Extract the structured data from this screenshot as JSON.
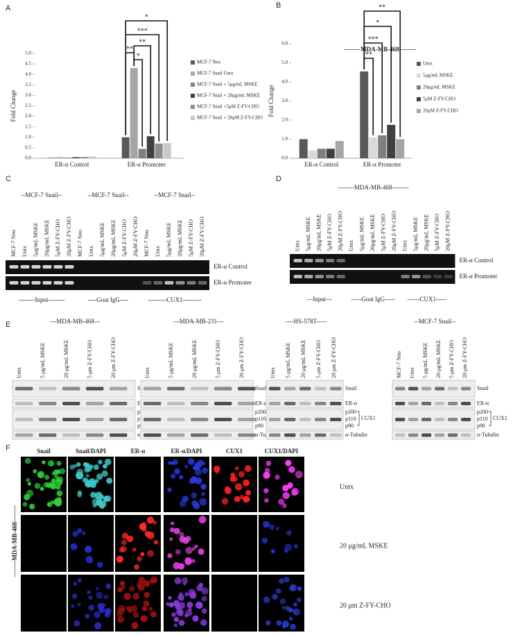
{
  "panel_labels": [
    "A",
    "B",
    "C",
    "D",
    "E",
    "F"
  ],
  "chart_data": [
    {
      "type": "bar",
      "ylabel": "Fold Change",
      "categories": [
        "ER-α Control",
        "ER-α Promoter"
      ],
      "ylim": [
        0,
        5
      ],
      "yticks": [
        {
          "value": 0,
          "label": "0.0"
        },
        0.5,
        {
          "value": 1,
          "label": "1.0"
        },
        1.5,
        {
          "value": 2,
          "label": "2.0"
        },
        2.5,
        {
          "value": 3,
          "label": "3.0"
        },
        3.5,
        {
          "value": 4,
          "label": "4.0"
        },
        4.5,
        {
          "value": 5,
          "label": "5.0"
        }
      ],
      "series": [
        {
          "name": "MCF-7 Neo",
          "color": "#595959",
          "values": [
            0.02,
            1.0
          ]
        },
        {
          "name": "MCF-7 Snail Untx",
          "color": "#a6a6a6",
          "values": [
            0.05,
            4.3
          ]
        },
        {
          "name": "MCF-7 Snail + 5μg/mL MSKE",
          "color": "#7f7f7f",
          "values": [
            0.03,
            0.45
          ]
        },
        {
          "name": "MCF-7 Snail + 20μg/mL MSKE",
          "color": "#404040",
          "values": [
            0.05,
            1.05
          ]
        },
        {
          "name": "MCF-7 Snail +5μM Z-FY-CHO",
          "color": "#8c8c8c",
          "values": [
            0.06,
            0.7
          ]
        },
        {
          "name": "MCF-7 Snail + 20μM Z-FY-CHO",
          "color": "#c8c8c8",
          "values": [
            0.08,
            0.72
          ]
        }
      ],
      "annotations": [
        "*",
        "***",
        "**",
        "**",
        "*"
      ]
    },
    {
      "type": "bar",
      "title": "--------MDA-MB-468--------",
      "ylabel": "Fold Change",
      "categories": [
        "ER-α Control",
        "ER-α Promoter"
      ],
      "ylim": [
        0,
        6
      ],
      "yticks": [
        {
          "value": 0,
          "label": "0.0"
        },
        {
          "value": 1,
          "label": "1.0"
        },
        {
          "value": 2,
          "label": "2.0"
        },
        {
          "value": 3,
          "label": "3.0"
        },
        {
          "value": 4,
          "label": "4.0"
        },
        {
          "value": 5,
          "label": "5.0"
        },
        {
          "value": 6,
          "label": "6.0"
        }
      ],
      "series": [
        {
          "name": "Untx",
          "color": "#595959",
          "values": [
            1.0,
            4.55
          ]
        },
        {
          "name": "5μg/mL MSKE",
          "color": "#d9d9d9",
          "values": [
            0.4,
            1.1
          ]
        },
        {
          "name": "20μg/mL MSKE",
          "color": "#7f7f7f",
          "values": [
            0.5,
            1.2
          ]
        },
        {
          "name": "5μM Z-FY-CHO",
          "color": "#404040",
          "values": [
            0.5,
            1.75
          ]
        },
        {
          "name": "20μM Z-FY-CHO",
          "color": "#a6a6a6",
          "values": [
            0.9,
            1.0
          ]
        }
      ],
      "annotations": [
        "**",
        "*",
        "***",
        "**"
      ]
    }
  ],
  "gel_c": {
    "rows": [
      "ER-α Control",
      "ER-α Promoter"
    ],
    "groups": [
      {
        "title": "--MCF-7 Snail--",
        "footer": "--------Input--------",
        "lanes": [
          "MCF-7 Neo",
          "Untx",
          "5μg/mL MSKE",
          "20μg/mL MSKE",
          "5μM Z-FY-CHO",
          "20μM Z-FY-CHO"
        ]
      },
      {
        "title": "--MCF-7 Snail--",
        "footer": "----Goat IgG----",
        "lanes": [
          "MCF-7 Neo",
          "Untx",
          "5μg/mL MSKE",
          "20μg/mL MSKE",
          "5μM Z-FY-CHO",
          "20μM Z-FY-CHO"
        ]
      },
      {
        "title": "--MCF-7 Snail--",
        "footer": "---------CUX1---------",
        "lanes": [
          "MCF-7 Neo",
          "Untx",
          "5μg/mL MSKE",
          "20μg/mL MSKE",
          "5μM Z-FY-CHO",
          "20μM Z-FY-CHO"
        ]
      }
    ]
  },
  "gel_d": {
    "title": "--------MDA-MB-468--------",
    "rows": [
      "ER-α Control",
      "ER-α Promoter"
    ],
    "groups": [
      {
        "footer": "---Input---",
        "lanes": [
          "Untx",
          "5μg/mL MSKE",
          "20μg/mL MSKE",
          "5μM Z-FY-CHO",
          "20μM Z-FY-CHO"
        ]
      },
      {
        "footer": "-----Goat IgG-----",
        "lanes": [
          "Untx",
          "5μg/mL MSKE",
          "20μg/mL MSKE",
          "5μM Z-FY-CHO",
          "20μM Z-FY-CHO"
        ]
      },
      {
        "footer": "------CUX1-----",
        "lanes": [
          "Untx",
          "5μg/mL MSKE",
          "20μg/mL MSKE",
          "5μM Z-FY-CHO",
          "20μM Z-FY-CHO"
        ]
      }
    ]
  },
  "western_e": {
    "labels": {
      "snail": "Snail",
      "er": "ER-α",
      "p200": "p200",
      "p110": "p110",
      "p90": "p90",
      "cux1": "CUX1",
      "tubulin": "α-Tubulin"
    },
    "blots": [
      {
        "title": "---MDA-MB-468---",
        "lanes": [
          "Untx",
          "5 μg/mL MSKE",
          "20 μg/mL MSKE",
          "5 μm Z-FY-CHO",
          "20 μm Z-FY-CHO"
        ]
      },
      {
        "title": "---MDA-MB-231---",
        "lanes": [
          "Untx",
          "5 μg/mL MSKE",
          "20 μg/mL MSKE",
          "5 μm Z-FY-CHO",
          "20 μm Z-FY-CHO"
        ]
      },
      {
        "title": "----HS-578T-----",
        "lanes": [
          "Untx",
          "5 μg/mL MSKE",
          "20 μg/mL MSKE",
          "5 μm Z-FY-CHO",
          "20 μm Z-FY-CHO"
        ]
      },
      {
        "title": "--MCF-7 Snail--",
        "lanes": [
          "MCF-7 Neo",
          "Untx",
          "5 μg/mL MSKE",
          "20 μg/mL MSKE",
          "5 μm Z-FY-CHO",
          "20 μm Z-FY-CHO"
        ]
      }
    ]
  },
  "imaging_f": {
    "cell_line": "--------MDA-MB-468--------",
    "columns": [
      "Snail",
      "Snail/DAPI",
      "ER-α",
      "ER-α/DAPI",
      "CUX1",
      "CUX1/DAPI"
    ],
    "rows": [
      "Untx",
      "20 μg/mL MSKE",
      "20 μm Z-FY-CHO"
    ]
  }
}
